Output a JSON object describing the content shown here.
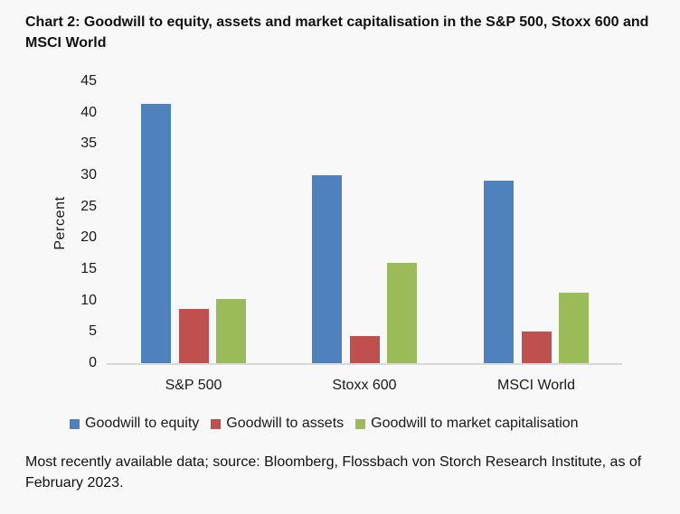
{
  "title": "Chart 2: Goodwill to equity, assets and market capitalisation in the S&P 500, Stoxx 600 and MSCI World",
  "footer": "Most recently available data; source: Bloomberg, Flossbach von Storch Research Institute, as of February 2023.",
  "colors": {
    "background": "#F8F8F8",
    "axis_line": "#D9D9D9",
    "text": "#1A1A1A",
    "series_blue": "#4F81BD",
    "series_red": "#C0504D",
    "series_green": "#9BBB59"
  },
  "chart_data": {
    "type": "bar",
    "title": "Chart 2: Goodwill to equity, assets and market capitalisation in the S&P 500, Stoxx 600 and MSCI World",
    "categories": [
      "S&P 500",
      "Stoxx 600",
      "MSCI World"
    ],
    "series": [
      {
        "name": "Goodwill to equity",
        "color": "#4F81BD",
        "values": [
          41.4,
          30.0,
          29.1
        ]
      },
      {
        "name": "Goodwill to assets",
        "color": "#C0504D",
        "values": [
          8.6,
          4.3,
          5.0
        ]
      },
      {
        "name": "Goodwill to market capitalisation",
        "color": "#9BBB59",
        "values": [
          10.2,
          16.0,
          11.3
        ]
      }
    ],
    "xlabel": "",
    "ylabel": "Percent",
    "ylim": [
      0,
      45
    ],
    "yticks": [
      0,
      5,
      10,
      15,
      20,
      25,
      30,
      35,
      40,
      45
    ],
    "grid": false,
    "legend_position": "bottom",
    "note": "Most recently available data; source: Bloomberg, Flossbach von Storch Research Institute, as of February 2023."
  }
}
